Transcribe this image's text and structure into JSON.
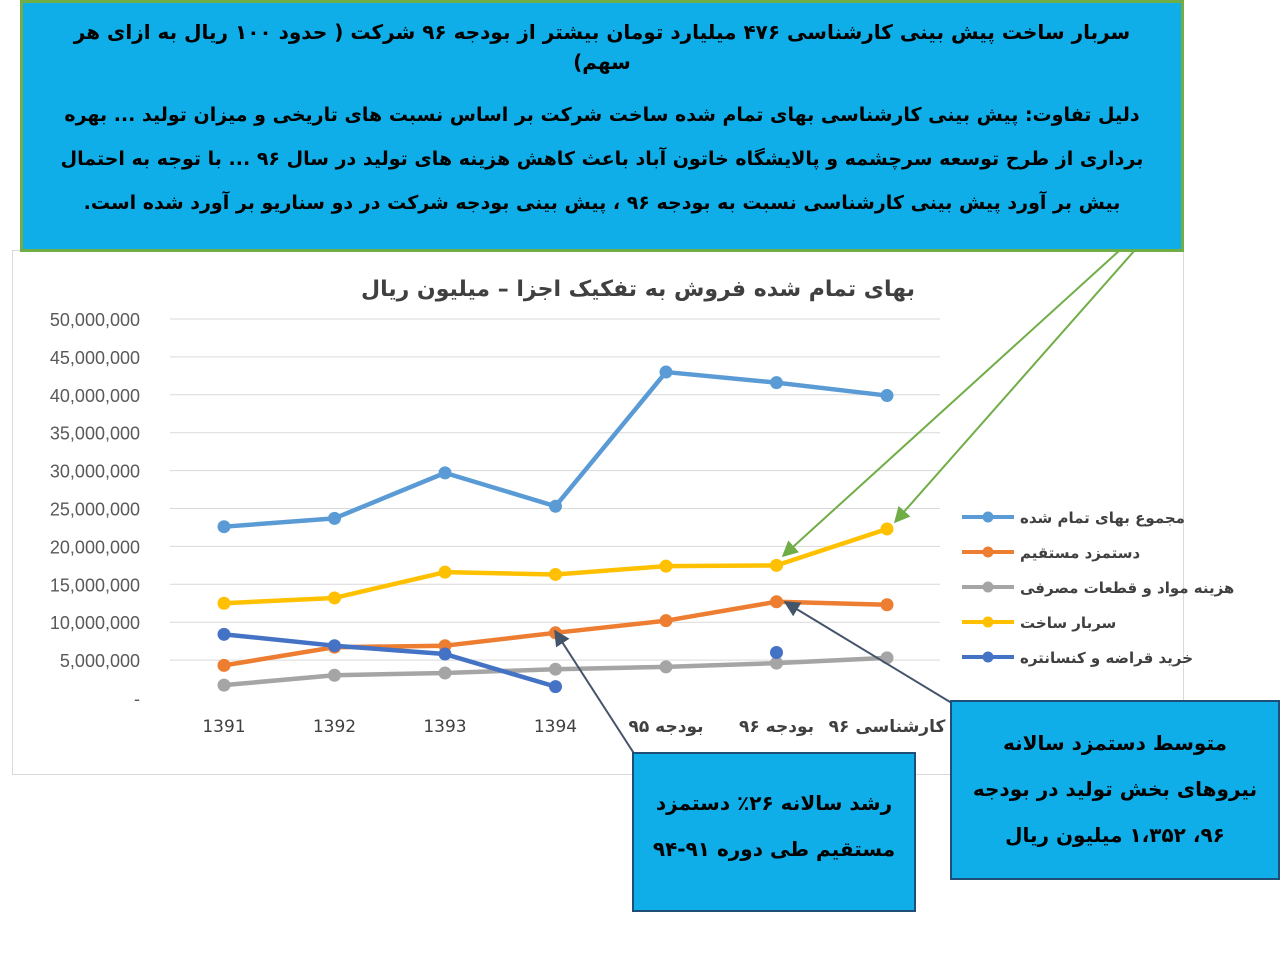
{
  "header_callout": {
    "line1": "سربار ساخت پیش بینی کارشناسی ۴۷۶ میلیارد تومان بیشتر از بودجه ۹۶ شرکت ( حدود ۱۰۰ ریال به ازای هر سهم)",
    "line2": "دلیل تفاوت: پیش بینی کارشناسی بهای تمام شده ساخت شرکت بر اساس نسبت های تاریخی و میزان تولید ... بهره برداری از طرح توسعه سرچشمه و پالایشگاه خاتون آباد باعث کاهش هزینه های تولید در سال ۹۶ ... با توجه به احتمال بیش بر آورد پیش بینی کارشناسی نسبت به بودجه ۹۶ ، پیش بینی بودجه شرکت در دو سناریو بر آورد شده است."
  },
  "growth_callout": {
    "text": "رشد سالانه ۲۶٪ دستمزد مستقیم طی دوره ۹۱-۹۴"
  },
  "wage_callout": {
    "text": "متوسط دستمزد سالانه نیروهای بخش تولید در بودجه ۹۶، ۱،۳۵۲ میلیون ریال"
  },
  "chart_data": {
    "type": "line",
    "title": "بهای تمام شده فروش به تفکیک اجزا – میلیون ریال",
    "categories": [
      "1391",
      "1392",
      "1393",
      "1394",
      "بودجه ۹۵",
      "بودجه ۹۶",
      "کارشناسی ۹۶"
    ],
    "y_tick_labels": [
      "-",
      "5,000,000",
      "10,000,000",
      "15,000,000",
      "20,000,000",
      "25,000,000",
      "30,000,000",
      "35,000,000",
      "40,000,000",
      "45,000,000",
      "50,000,000"
    ],
    "ylim": [
      0,
      50000000
    ],
    "grid": true,
    "legend_position": "right",
    "series": [
      {
        "name": "مجموع بهای تمام شده",
        "color": "#5b9bd5",
        "values": [
          22600000,
          23700000,
          29700000,
          25300000,
          43000000,
          41600000,
          39900000
        ]
      },
      {
        "name": "دستمزد مستقیم",
        "color": "#ed7d31",
        "values": [
          4300000,
          6700000,
          6900000,
          8600000,
          10200000,
          12700000,
          12300000
        ]
      },
      {
        "name": "هزینه مواد و قطعات مصرفی",
        "color": "#a5a5a5",
        "values": [
          1700000,
          3000000,
          3300000,
          3800000,
          4100000,
          4600000,
          5300000
        ]
      },
      {
        "name": "سربار ساخت",
        "color": "#ffc000",
        "values": [
          12500000,
          13200000,
          16600000,
          16300000,
          17400000,
          17500000,
          22300000
        ]
      },
      {
        "name": "خرید قراضه و کنسانتره",
        "color": "#4472c4",
        "values": [
          8400000,
          6900000,
          5800000,
          1500000,
          null,
          6000000,
          null
        ]
      }
    ]
  }
}
